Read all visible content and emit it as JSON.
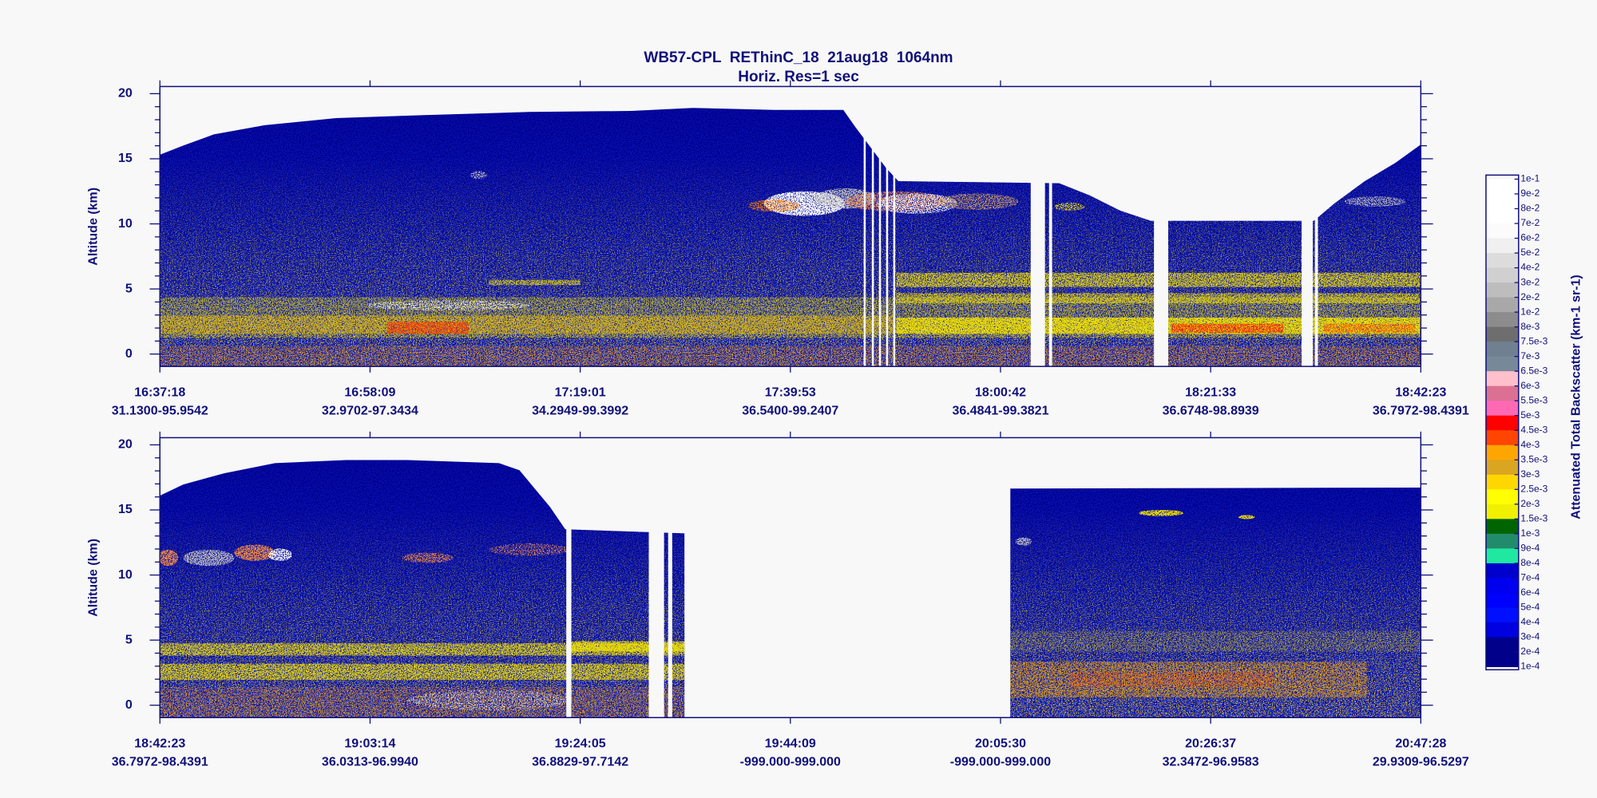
{
  "title": "WB57-CPL  REThinC_18  21aug18  1064nm",
  "subtitle": "Horiz. Res=1 sec",
  "chart_data": [
    {
      "type": "heatmap",
      "ylabel": "Altitude (km)",
      "ylim": [
        -0.95,
        20.55
      ],
      "yticks": [
        0,
        5,
        10,
        15,
        20
      ],
      "x_times": [
        "16:37:18",
        "16:58:09",
        "17:19:01",
        "17:39:53",
        "18:00:42",
        "18:21:33",
        "18:42:23"
      ],
      "x_positions": [
        "31.1300-95.9542",
        "32.9702-97.3434",
        "34.2949-99.3992",
        "36.5400-99.2407",
        "36.4841-99.3821",
        "36.6748-98.8939",
        "36.7972-98.4391"
      ]
    },
    {
      "type": "heatmap",
      "ylabel": "Altitude (km)",
      "ylim": [
        -0.95,
        20.55
      ],
      "yticks": [
        0,
        5,
        10,
        15,
        20
      ],
      "x_times": [
        "18:42:23",
        "19:03:14",
        "19:24:05",
        "19:44:09",
        "20:05:30",
        "20:26:37",
        "20:47:28"
      ],
      "x_positions": [
        "36.7972-98.4391",
        "36.0313-96.9940",
        "36.8829-97.7142",
        "-999.000-999.000",
        "-999.000-999.000",
        "32.3472-96.9583",
        "29.9309-96.5297"
      ]
    }
  ],
  "colorbar": {
    "label": "Attenuated Total Backscatter (km-1 sr-1)",
    "ticks": [
      {
        "value": 0.1,
        "label": "1e-1"
      },
      {
        "value": 0.09,
        "label": "9e-2"
      },
      {
        "value": 0.08,
        "label": "8e-2"
      },
      {
        "value": 0.07,
        "label": "7e-2"
      },
      {
        "value": 0.06,
        "label": "6e-2"
      },
      {
        "value": 0.05,
        "label": "5e-2"
      },
      {
        "value": 0.04,
        "label": "4e-2"
      },
      {
        "value": 0.03,
        "label": "3e-2"
      },
      {
        "value": 0.02,
        "label": "2e-2"
      },
      {
        "value": 0.01,
        "label": "1e-2"
      },
      {
        "value": 0.008,
        "label": "8e-3"
      },
      {
        "value": 0.0075,
        "label": "7.5e-3"
      },
      {
        "value": 0.007,
        "label": "7e-3"
      },
      {
        "value": 0.0065,
        "label": "6.5e-3"
      },
      {
        "value": 0.006,
        "label": "6e-3"
      },
      {
        "value": 0.0055,
        "label": "5.5e-3"
      },
      {
        "value": 0.005,
        "label": "5e-3"
      },
      {
        "value": 0.0045,
        "label": "4.5e-3"
      },
      {
        "value": 0.004,
        "label": "4e-3"
      },
      {
        "value": 0.0035,
        "label": "3.5e-3"
      },
      {
        "value": 0.003,
        "label": "3e-3"
      },
      {
        "value": 0.0025,
        "label": "2.5e-3"
      },
      {
        "value": 0.002,
        "label": "2e-3"
      },
      {
        "value": 0.0015,
        "label": "1.5e-3"
      },
      {
        "value": 0.001,
        "label": "1e-3"
      },
      {
        "value": 0.0009,
        "label": "9e-4"
      },
      {
        "value": 0.0008,
        "label": "8e-4"
      },
      {
        "value": 0.0007,
        "label": "7e-4"
      },
      {
        "value": 0.0006,
        "label": "6e-4"
      },
      {
        "value": 0.0005,
        "label": "5e-4"
      },
      {
        "value": 0.0004,
        "label": "4e-4"
      },
      {
        "value": 0.0003,
        "label": "3e-4"
      },
      {
        "value": 0.0002,
        "label": "2e-4"
      },
      {
        "value": 0.0001,
        "label": "1e-4"
      }
    ],
    "colors": [
      "#ffffff",
      "#ffffff",
      "#ffffff",
      "#fbfbfb",
      "#f0f0f0",
      "#dcdcdc",
      "#d0d0d0",
      "#bdbdbd",
      "#a8a8a8",
      "#8c8c8c",
      "#6e6e6e",
      "#708090",
      "#778899",
      "#ffc0cb",
      "#db7093",
      "#ff69b4",
      "#ff0000",
      "#ff4500",
      "#ffa500",
      "#daa520",
      "#ffd700",
      "#ffff00",
      "#f0f000",
      "#006400",
      "#228b6b",
      "#20e8a0",
      "#0000cd",
      "#0000ee",
      "#0000ff",
      "#0010ff",
      "#0000e0",
      "#00008b",
      "#00008b"
    ]
  }
}
